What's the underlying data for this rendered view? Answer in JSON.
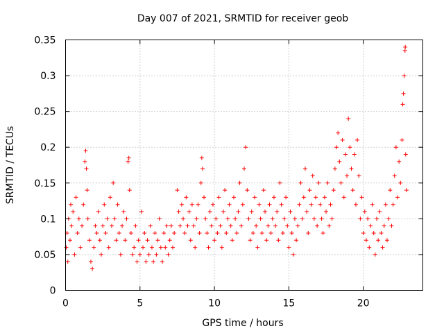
{
  "chart_data": {
    "type": "scatter",
    "title": "Day 007 of 2021, SRMTID for receiver geob",
    "xlabel": "GPS time / hours",
    "ylabel": "SRMTID / TECUs",
    "xlim": [
      0,
      24
    ],
    "ylim": [
      0,
      0.35
    ],
    "xticks": [
      0,
      5,
      10,
      15,
      20
    ],
    "xtick_labels": [
      "0",
      "5",
      "10",
      "15",
      "20"
    ],
    "yticks": [
      0,
      0.05,
      0.1,
      0.15,
      0.2,
      0.25,
      0.3,
      0.35
    ],
    "ytick_labels": [
      "0",
      "0.05",
      "0.1",
      "0.15",
      "0.2",
      "0.25",
      "0.3",
      "0.35"
    ],
    "grid": true,
    "marker": "+",
    "color": "#ff0000",
    "points": [
      [
        0.05,
        0.06
      ],
      [
        0.1,
        0.08
      ],
      [
        0.15,
        0.04
      ],
      [
        0.2,
        0.1
      ],
      [
        0.3,
        0.07
      ],
      [
        0.35,
        0.12
      ],
      [
        0.4,
        0.09
      ],
      [
        0.5,
        0.11
      ],
      [
        0.6,
        0.05
      ],
      [
        0.7,
        0.13
      ],
      [
        0.8,
        0.08
      ],
      [
        0.9,
        0.1
      ],
      [
        1.0,
        0.06
      ],
      [
        1.1,
        0.09
      ],
      [
        1.2,
        0.12
      ],
      [
        1.3,
        0.18
      ],
      [
        1.35,
        0.195
      ],
      [
        1.4,
        0.17
      ],
      [
        1.45,
        0.14
      ],
      [
        1.5,
        0.1
      ],
      [
        1.6,
        0.07
      ],
      [
        1.7,
        0.04
      ],
      [
        1.8,
        0.03
      ],
      [
        1.9,
        0.06
      ],
      [
        2.0,
        0.09
      ],
      [
        2.1,
        0.08
      ],
      [
        2.2,
        0.11
      ],
      [
        2.3,
        0.07
      ],
      [
        2.4,
        0.05
      ],
      [
        2.5,
        0.09
      ],
      [
        2.6,
        0.12
      ],
      [
        2.7,
        0.08
      ],
      [
        2.8,
        0.1
      ],
      [
        2.9,
        0.06
      ],
      [
        3.0,
        0.13
      ],
      [
        3.1,
        0.09
      ],
      [
        3.2,
        0.15
      ],
      [
        3.3,
        0.1
      ],
      [
        3.4,
        0.07
      ],
      [
        3.5,
        0.12
      ],
      [
        3.6,
        0.08
      ],
      [
        3.7,
        0.05
      ],
      [
        3.8,
        0.09
      ],
      [
        3.9,
        0.11
      ],
      [
        4.0,
        0.07
      ],
      [
        4.1,
        0.1
      ],
      [
        4.2,
        0.18
      ],
      [
        4.25,
        0.185
      ],
      [
        4.3,
        0.14
      ],
      [
        4.4,
        0.08
      ],
      [
        4.5,
        0.05
      ],
      [
        4.6,
        0.06
      ],
      [
        4.7,
        0.09
      ],
      [
        4.8,
        0.04
      ],
      [
        4.9,
        0.07
      ],
      [
        5.0,
        0.05
      ],
      [
        5.1,
        0.11
      ],
      [
        5.2,
        0.06
      ],
      [
        5.3,
        0.08
      ],
      [
        5.4,
        0.04
      ],
      [
        5.5,
        0.07
      ],
      [
        5.6,
        0.05
      ],
      [
        5.7,
        0.09
      ],
      [
        5.8,
        0.06
      ],
      [
        5.9,
        0.04
      ],
      [
        6.0,
        0.08
      ],
      [
        6.1,
        0.05
      ],
      [
        6.2,
        0.07
      ],
      [
        6.3,
        0.1
      ],
      [
        6.4,
        0.06
      ],
      [
        6.5,
        0.04
      ],
      [
        6.6,
        0.08
      ],
      [
        6.7,
        0.06
      ],
      [
        6.8,
        0.09
      ],
      [
        6.9,
        0.05
      ],
      [
        7.0,
        0.07
      ],
      [
        7.1,
        0.09
      ],
      [
        7.2,
        0.06
      ],
      [
        7.3,
        0.08
      ],
      [
        7.5,
        0.14
      ],
      [
        7.6,
        0.11
      ],
      [
        7.7,
        0.09
      ],
      [
        7.8,
        0.12
      ],
      [
        7.9,
        0.1
      ],
      [
        8.0,
        0.08
      ],
      [
        8.1,
        0.13
      ],
      [
        8.2,
        0.09
      ],
      [
        8.3,
        0.11
      ],
      [
        8.4,
        0.07
      ],
      [
        8.5,
        0.12
      ],
      [
        8.6,
        0.09
      ],
      [
        8.7,
        0.06
      ],
      [
        8.8,
        0.1
      ],
      [
        8.9,
        0.12
      ],
      [
        9.0,
        0.08
      ],
      [
        9.1,
        0.15
      ],
      [
        9.15,
        0.185
      ],
      [
        9.2,
        0.17
      ],
      [
        9.3,
        0.13
      ],
      [
        9.4,
        0.1
      ],
      [
        9.5,
        0.08
      ],
      [
        9.6,
        0.06
      ],
      [
        9.7,
        0.11
      ],
      [
        9.8,
        0.09
      ],
      [
        9.9,
        0.12
      ],
      [
        10.0,
        0.07
      ],
      [
        10.1,
        0.1
      ],
      [
        10.2,
        0.08
      ],
      [
        10.3,
        0.13
      ],
      [
        10.4,
        0.09
      ],
      [
        10.5,
        0.06
      ],
      [
        10.6,
        0.11
      ],
      [
        10.7,
        0.14
      ],
      [
        10.8,
        0.08
      ],
      [
        10.9,
        0.1
      ],
      [
        11.0,
        0.12
      ],
      [
        11.1,
        0.09
      ],
      [
        11.2,
        0.07
      ],
      [
        11.3,
        0.13
      ],
      [
        11.4,
        0.1
      ],
      [
        11.5,
        0.08
      ],
      [
        11.6,
        0.11
      ],
      [
        11.7,
        0.15
      ],
      [
        11.8,
        0.09
      ],
      [
        11.9,
        0.12
      ],
      [
        12.0,
        0.17
      ],
      [
        12.1,
        0.2
      ],
      [
        12.2,
        0.14
      ],
      [
        12.3,
        0.1
      ],
      [
        12.4,
        0.07
      ],
      [
        12.5,
        0.11
      ],
      [
        12.6,
        0.08
      ],
      [
        12.7,
        0.13
      ],
      [
        12.8,
        0.09
      ],
      [
        12.9,
        0.06
      ],
      [
        13.0,
        0.12
      ],
      [
        13.1,
        0.1
      ],
      [
        13.2,
        0.08
      ],
      [
        13.3,
        0.14
      ],
      [
        13.4,
        0.11
      ],
      [
        13.5,
        0.07
      ],
      [
        13.6,
        0.09
      ],
      [
        13.7,
        0.12
      ],
      [
        13.8,
        0.08
      ],
      [
        13.9,
        0.1
      ],
      [
        14.0,
        0.13
      ],
      [
        14.1,
        0.09
      ],
      [
        14.2,
        0.11
      ],
      [
        14.3,
        0.07
      ],
      [
        14.4,
        0.15
      ],
      [
        14.5,
        0.12
      ],
      [
        14.6,
        0.08
      ],
      [
        14.7,
        0.1
      ],
      [
        14.8,
        0.13
      ],
      [
        14.9,
        0.09
      ],
      [
        15.0,
        0.06
      ],
      [
        15.1,
        0.11
      ],
      [
        15.2,
        0.08
      ],
      [
        15.3,
        0.05
      ],
      [
        15.4,
        0.1
      ],
      [
        15.5,
        0.07
      ],
      [
        15.6,
        0.09
      ],
      [
        15.7,
        0.12
      ],
      [
        15.8,
        0.15
      ],
      [
        15.9,
        0.1
      ],
      [
        16.0,
        0.13
      ],
      [
        16.1,
        0.17
      ],
      [
        16.2,
        0.11
      ],
      [
        16.3,
        0.08
      ],
      [
        16.4,
        0.14
      ],
      [
        16.5,
        0.12
      ],
      [
        16.6,
        0.16
      ],
      [
        16.7,
        0.1
      ],
      [
        16.8,
        0.13
      ],
      [
        16.9,
        0.09
      ],
      [
        17.0,
        0.15
      ],
      [
        17.1,
        0.12
      ],
      [
        17.2,
        0.1
      ],
      [
        17.3,
        0.08
      ],
      [
        17.4,
        0.13
      ],
      [
        17.5,
        0.11
      ],
      [
        17.6,
        0.15
      ],
      [
        17.7,
        0.09
      ],
      [
        17.8,
        0.12
      ],
      [
        17.9,
        0.1
      ],
      [
        18.0,
        0.14
      ],
      [
        18.1,
        0.17
      ],
      [
        18.2,
        0.2
      ],
      [
        18.3,
        0.22
      ],
      [
        18.4,
        0.18
      ],
      [
        18.5,
        0.15
      ],
      [
        18.6,
        0.21
      ],
      [
        18.7,
        0.13
      ],
      [
        18.8,
        0.19
      ],
      [
        18.9,
        0.16
      ],
      [
        19.0,
        0.24
      ],
      [
        19.1,
        0.2
      ],
      [
        19.2,
        0.17
      ],
      [
        19.3,
        0.14
      ],
      [
        19.4,
        0.19
      ],
      [
        19.5,
        0.12
      ],
      [
        19.6,
        0.21
      ],
      [
        19.7,
        0.16
      ],
      [
        19.8,
        0.1
      ],
      [
        19.9,
        0.13
      ],
      [
        20.0,
        0.08
      ],
      [
        20.1,
        0.11
      ],
      [
        20.2,
        0.07
      ],
      [
        20.3,
        0.1
      ],
      [
        20.4,
        0.06
      ],
      [
        20.5,
        0.09
      ],
      [
        20.6,
        0.12
      ],
      [
        20.7,
        0.08
      ],
      [
        20.8,
        0.05
      ],
      [
        20.9,
        0.1
      ],
      [
        21.0,
        0.07
      ],
      [
        21.1,
        0.11
      ],
      [
        21.2,
        0.08
      ],
      [
        21.3,
        0.06
      ],
      [
        21.4,
        0.09
      ],
      [
        21.5,
        0.12
      ],
      [
        21.6,
        0.07
      ],
      [
        21.7,
        0.1
      ],
      [
        21.8,
        0.14
      ],
      [
        21.9,
        0.09
      ],
      [
        22.0,
        0.12
      ],
      [
        22.1,
        0.16
      ],
      [
        22.2,
        0.2
      ],
      [
        22.3,
        0.13
      ],
      [
        22.4,
        0.18
      ],
      [
        22.5,
        0.15
      ],
      [
        22.6,
        0.21
      ],
      [
        22.65,
        0.26
      ],
      [
        22.7,
        0.275
      ],
      [
        22.75,
        0.3
      ],
      [
        22.8,
        0.335
      ],
      [
        22.82,
        0.34
      ],
      [
        22.85,
        0.19
      ],
      [
        22.9,
        0.14
      ]
    ]
  }
}
